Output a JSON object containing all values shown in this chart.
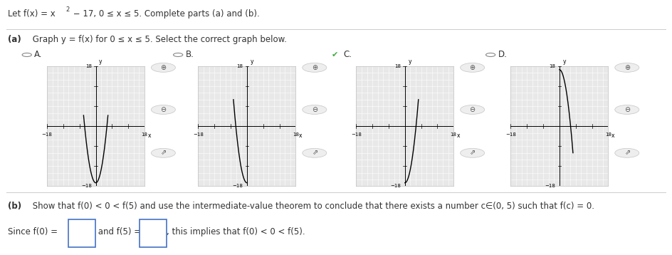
{
  "title_text1": "Let f(x) = x",
  "title_sup": "2",
  "title_text2": " − 17, 0 ≤ x ≤ 5. Complete parts (a) and (b).",
  "part_a_bold": "(a)",
  "part_a_rest": " Graph y = f(x) for 0 ≤ x ≤ 5. Select the correct graph below.",
  "part_b_bold": "(b)",
  "part_b_rest": " Show that f(0) < 0 < f(5) and use the intermediate-value theorem to conclude that there exists a number c∈(0, 5) such that f(c) = 0.",
  "since_text1": "Since f(0) =",
  "since_text2": " and f(5) =",
  "since_text3": ", this implies that f(0) < 0 < f(5).",
  "graph_labels": [
    "A.",
    "B.",
    "C.",
    "D."
  ],
  "selected": 2,
  "graph_types": [
    0,
    1,
    2,
    3
  ],
  "text_color": "#333333",
  "bold_color": "#333333",
  "link_color": "#2E75B6",
  "grid_bg": "#E8E8E8",
  "grid_line_color": "#FFFFFF",
  "curve_color": "#000000",
  "radio_color": "#888888",
  "check_color": "#3DAA3D",
  "box_border_color": "#4472C4",
  "icon_bg": "#EEEEEE",
  "icon_border": "#CCCCCC",
  "sep_line_color": "#CCCCCC"
}
